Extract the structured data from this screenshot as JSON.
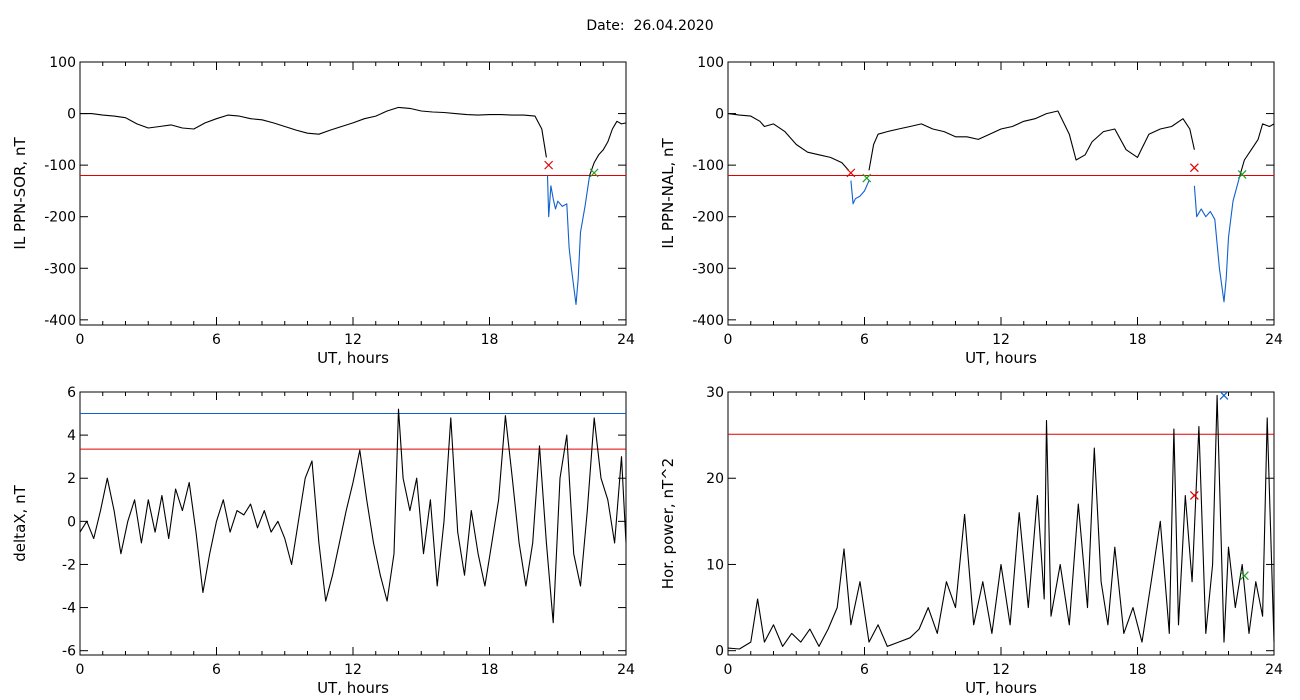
{
  "page": {
    "title": "Date:  26.04.2020"
  },
  "chart_data": [
    {
      "id": "il-ppn-sor",
      "type": "line",
      "ylabel": "IL PPN-SOR, nT",
      "xlabel": "UT, hours",
      "xlim": [
        0,
        24
      ],
      "xticks": [
        0,
        6,
        12,
        18,
        24
      ],
      "ylim": [
        -410,
        100
      ],
      "yticks": [
        -400,
        -300,
        -200,
        -100,
        0,
        100
      ],
      "threshold_lines": [
        {
          "y": -120,
          "color": "#e00000"
        }
      ],
      "grid": false,
      "series": [
        {
          "color": "#000000",
          "x": [
            0,
            0.5,
            1,
            1.5,
            2,
            2.5,
            3,
            3.5,
            4,
            4.5,
            5,
            5.5,
            6,
            6.5,
            7,
            7.5,
            8,
            8.5,
            9,
            9.5,
            10,
            10.5,
            11,
            11.5,
            12,
            12.5,
            13,
            13.5,
            14,
            14.5,
            15,
            15.5,
            16,
            16.5,
            17,
            17.5,
            18,
            18.5,
            19,
            19.5,
            20,
            20.3,
            20.5
          ],
          "y": [
            0,
            0,
            -3,
            -5,
            -8,
            -20,
            -28,
            -25,
            -22,
            -28,
            -30,
            -18,
            -10,
            -3,
            -5,
            -10,
            -12,
            -18,
            -25,
            -32,
            -38,
            -40,
            -32,
            -25,
            -18,
            -10,
            -5,
            5,
            12,
            10,
            5,
            3,
            2,
            0,
            -2,
            -3,
            -2,
            -2,
            -3,
            -3,
            -5,
            -30,
            -85
          ]
        },
        {
          "color": "#1060d0",
          "x": [
            20.55,
            20.6,
            20.7,
            20.8,
            20.9,
            21.0,
            21.2,
            21.4,
            21.5,
            21.6,
            21.8,
            21.9,
            22.0,
            22.2,
            22.4
          ],
          "y": [
            -120,
            -200,
            -140,
            -165,
            -185,
            -170,
            -180,
            -175,
            -260,
            -300,
            -370,
            -320,
            -230,
            -180,
            -120
          ]
        },
        {
          "color": "#000000",
          "x": [
            22.4,
            22.6,
            22.8,
            23.0,
            23.2,
            23.4,
            23.6,
            23.8,
            24.0
          ],
          "y": [
            -120,
            -95,
            -80,
            -70,
            -55,
            -30,
            -15,
            -20,
            -18
          ]
        }
      ],
      "markers": [
        {
          "x": 20.6,
          "y": -100,
          "color": "#e00000"
        },
        {
          "x": 22.6,
          "y": -115,
          "color": "#20a020"
        }
      ]
    },
    {
      "id": "il-ppn-nal",
      "type": "line",
      "ylabel": "IL PPN-NAL, nT",
      "xlabel": "UT, hours",
      "xlim": [
        0,
        24
      ],
      "xticks": [
        0,
        6,
        12,
        18,
        24
      ],
      "ylim": [
        -410,
        100
      ],
      "yticks": [
        -400,
        -300,
        -200,
        -100,
        0,
        100
      ],
      "threshold_lines": [
        {
          "y": -120,
          "color": "#e00000"
        }
      ],
      "grid": false,
      "series": [
        {
          "color": "#000000",
          "x": [
            0,
            0.5,
            1,
            1.4,
            1.6,
            2,
            2.5,
            3,
            3.5,
            4,
            4.5,
            5,
            5.3
          ],
          "y": [
            0,
            -3,
            -5,
            -15,
            -25,
            -20,
            -35,
            -60,
            -75,
            -80,
            -85,
            -95,
            -110
          ]
        },
        {
          "color": "#1060d0",
          "x": [
            5.4,
            5.5,
            5.6,
            5.8,
            6.0,
            6.2
          ],
          "y": [
            -130,
            -175,
            -165,
            -160,
            -150,
            -130
          ]
        },
        {
          "color": "#000000",
          "x": [
            6.2,
            6.4,
            6.6,
            7,
            7.5,
            8,
            8.5,
            9,
            9.5,
            10,
            10.5,
            11,
            11.5,
            12,
            12.5,
            13,
            13.5,
            14,
            14.5,
            15,
            15.3,
            15.7,
            16,
            16.5,
            17,
            17.5,
            18,
            18.5,
            19,
            19.5,
            20,
            20.3,
            20.5
          ],
          "y": [
            -110,
            -60,
            -40,
            -35,
            -30,
            -25,
            -20,
            -30,
            -35,
            -45,
            -45,
            -50,
            -40,
            -30,
            -25,
            -15,
            -10,
            0,
            5,
            -40,
            -90,
            -80,
            -55,
            -35,
            -30,
            -70,
            -85,
            -40,
            -30,
            -25,
            -10,
            -30,
            -70
          ]
        },
        {
          "color": "#1060d0",
          "x": [
            20.5,
            20.6,
            20.8,
            21.0,
            21.2,
            21.4,
            21.6,
            21.8,
            21.9,
            22.0,
            22.2,
            22.5
          ],
          "y": [
            -140,
            -200,
            -185,
            -200,
            -190,
            -205,
            -300,
            -365,
            -320,
            -240,
            -170,
            -120
          ]
        },
        {
          "color": "#000000",
          "x": [
            22.5,
            22.7,
            23.0,
            23.3,
            23.5,
            23.8,
            24.0
          ],
          "y": [
            -120,
            -90,
            -70,
            -50,
            -20,
            -25,
            -20
          ]
        }
      ],
      "markers": [
        {
          "x": 5.4,
          "y": -115,
          "color": "#e00000"
        },
        {
          "x": 6.1,
          "y": -125,
          "color": "#20a020"
        },
        {
          "x": 20.5,
          "y": -105,
          "color": "#e00000"
        },
        {
          "x": 22.6,
          "y": -118,
          "color": "#20a020"
        }
      ]
    },
    {
      "id": "deltax",
      "type": "line",
      "ylabel": "deltaX, nT",
      "xlabel": "UT, hours",
      "xlim": [
        0,
        24
      ],
      "xticks": [
        0,
        6,
        12,
        18,
        24
      ],
      "ylim": [
        -6.2,
        6
      ],
      "yticks": [
        -6,
        -4,
        -2,
        0,
        2,
        4,
        6
      ],
      "threshold_lines": [
        {
          "y": 5.0,
          "color": "#1060d0"
        },
        {
          "y": 3.35,
          "color": "#e00000"
        }
      ],
      "grid": false,
      "series": [
        {
          "color": "#000000",
          "x": [
            0,
            0.3,
            0.6,
            0.9,
            1.2,
            1.5,
            1.8,
            2.1,
            2.4,
            2.7,
            3.0,
            3.3,
            3.6,
            3.9,
            4.2,
            4.5,
            4.8,
            5.1,
            5.4,
            5.7,
            6.0,
            6.3,
            6.6,
            6.9,
            7.2,
            7.5,
            7.8,
            8.1,
            8.4,
            8.7,
            9.0,
            9.3,
            9.6,
            9.9,
            10.2,
            10.5,
            10.8,
            11.1,
            11.4,
            11.7,
            12.0,
            12.3,
            12.6,
            12.9,
            13.2,
            13.5,
            13.8,
            14.0,
            14.2,
            14.5,
            14.8,
            15.1,
            15.4,
            15.7,
            16.0,
            16.3,
            16.6,
            16.9,
            17.2,
            17.5,
            17.8,
            18.1,
            18.4,
            18.7,
            19.0,
            19.3,
            19.6,
            19.9,
            20.2,
            20.5,
            20.8,
            21.1,
            21.4,
            21.7,
            22.0,
            22.3,
            22.6,
            22.9,
            23.2,
            23.5,
            23.8,
            24.0
          ],
          "y": [
            -0.5,
            0,
            -0.8,
            0.5,
            2.0,
            0.5,
            -1.5,
            0,
            1.0,
            -1.0,
            1.0,
            -0.5,
            1.2,
            -0.8,
            1.5,
            0.5,
            1.8,
            -0.5,
            -3.3,
            -1.5,
            0,
            1.0,
            -0.5,
            0.5,
            0.3,
            0.8,
            -0.3,
            0.5,
            -0.5,
            0,
            -0.8,
            -2.0,
            0,
            2.0,
            2.8,
            -1.0,
            -3.7,
            -2.5,
            -1.0,
            0.5,
            1.8,
            3.3,
            1.0,
            -1.0,
            -2.5,
            -3.7,
            -1.5,
            5.2,
            2.0,
            0.5,
            2.0,
            -1.5,
            1.0,
            -3.0,
            0,
            4.8,
            -0.5,
            -2.5,
            0.5,
            -1.5,
            -3.0,
            -1.0,
            1.0,
            4.9,
            2.0,
            -1.0,
            -3.0,
            -1.0,
            3.5,
            -1.0,
            -4.7,
            2.0,
            4.0,
            -1.5,
            -3.0,
            0.5,
            4.8,
            2.0,
            1.0,
            -1.0,
            3.0,
            -1.0
          ]
        }
      ],
      "markers": []
    },
    {
      "id": "hor-power",
      "type": "line",
      "ylabel": "Hor. power, nT^2",
      "xlabel": "UT, hours",
      "xlim": [
        0,
        24
      ],
      "xticks": [
        0,
        6,
        12,
        18,
        24
      ],
      "ylim": [
        -0.5,
        30
      ],
      "yticks": [
        0,
        10,
        20,
        30
      ],
      "threshold_lines": [
        {
          "y": 25.1,
          "color": "#e00000"
        }
      ],
      "grid": false,
      "series": [
        {
          "color": "#000000",
          "x": [
            0,
            0.5,
            1.0,
            1.3,
            1.6,
            2.0,
            2.4,
            2.8,
            3.2,
            3.6,
            4.0,
            4.4,
            4.8,
            5.1,
            5.4,
            5.8,
            6.2,
            6.6,
            7.0,
            7.5,
            8.0,
            8.4,
            8.8,
            9.2,
            9.6,
            10.0,
            10.4,
            10.8,
            11.2,
            11.6,
            12.0,
            12.4,
            12.8,
            13.2,
            13.6,
            13.9,
            14.0,
            14.2,
            14.6,
            15.0,
            15.4,
            15.8,
            16.1,
            16.4,
            16.7,
            17.0,
            17.4,
            17.8,
            18.2,
            18.6,
            19.0,
            19.4,
            19.6,
            19.8,
            20.1,
            20.4,
            20.7,
            21.0,
            21.3,
            21.5,
            21.8,
            22.0,
            22.3,
            22.6,
            22.9,
            23.2,
            23.5,
            23.7,
            24.0
          ],
          "y": [
            0.3,
            0.2,
            1.0,
            6.0,
            1.0,
            3.0,
            0.5,
            2.0,
            1.0,
            2.5,
            0.5,
            2.5,
            5.0,
            11.8,
            3.0,
            8.0,
            1.0,
            3.0,
            0.5,
            1.0,
            1.5,
            2.5,
            5.0,
            2.0,
            8.0,
            5.0,
            15.8,
            3.0,
            8.0,
            2.0,
            10.0,
            3.0,
            16.0,
            5.0,
            18.0,
            6.0,
            26.7,
            4.0,
            10.0,
            3.0,
            17.0,
            5.0,
            23.5,
            8.0,
            3.0,
            12.0,
            2.0,
            5.0,
            1.0,
            8.0,
            15.0,
            2.0,
            25.7,
            3.0,
            18.0,
            8.0,
            26.0,
            2.0,
            10.0,
            29.6,
            1.0,
            12.0,
            5.0,
            10.0,
            2.0,
            8.0,
            4.0,
            27.0,
            1.0
          ]
        }
      ],
      "markers": [
        {
          "x": 20.5,
          "y": 18.0,
          "color": "#e00000"
        },
        {
          "x": 21.8,
          "y": 29.6,
          "color": "#1060d0"
        },
        {
          "x": 22.7,
          "y": 8.7,
          "color": "#20a020"
        }
      ]
    }
  ]
}
